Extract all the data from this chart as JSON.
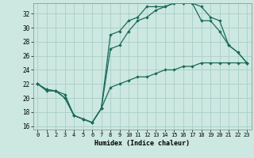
{
  "xlabel": "Humidex (Indice chaleur)",
  "bg_color": "#cce8e0",
  "grid_color": "#aacec6",
  "line_color": "#1a6b5a",
  "xlim": [
    -0.5,
    23.5
  ],
  "ylim": [
    15.5,
    33.5
  ],
  "xticks": [
    0,
    1,
    2,
    3,
    4,
    5,
    6,
    7,
    8,
    9,
    10,
    11,
    12,
    13,
    14,
    15,
    16,
    17,
    18,
    19,
    20,
    21,
    22,
    23
  ],
  "yticks": [
    16,
    18,
    20,
    22,
    24,
    26,
    28,
    30,
    32
  ],
  "line1_x": [
    0,
    1,
    2,
    3,
    4,
    5,
    6,
    7,
    8,
    9,
    10,
    11,
    12,
    13,
    14,
    15,
    16,
    17,
    18,
    19,
    20,
    21,
    22,
    23
  ],
  "line1_y": [
    22,
    21,
    21,
    20.5,
    17.5,
    17,
    16.5,
    18.5,
    21.5,
    22,
    22.5,
    23,
    23,
    23.5,
    24,
    24,
    24.5,
    24.5,
    25,
    25,
    25,
    25,
    25,
    25
  ],
  "line2_x": [
    0,
    1,
    2,
    3,
    4,
    5,
    6,
    7,
    8,
    9,
    10,
    11,
    12,
    13,
    14,
    15,
    16,
    17,
    18,
    19,
    20,
    21,
    22,
    23
  ],
  "line2_y": [
    22,
    21.2,
    21,
    20,
    17.5,
    17,
    16.5,
    18.5,
    27,
    27.5,
    29.5,
    31,
    31.5,
    32.5,
    33,
    33.5,
    33.5,
    33.5,
    33,
    31.5,
    31,
    27.5,
    26.5,
    25
  ],
  "line3_x": [
    0,
    1,
    2,
    3,
    4,
    5,
    6,
    7,
    8,
    9,
    10,
    11,
    12,
    13,
    14,
    15,
    16,
    17,
    18,
    19,
    20,
    21,
    22,
    23
  ],
  "line3_y": [
    22,
    21.2,
    21,
    20,
    17.5,
    17,
    16.5,
    18.5,
    29,
    29.5,
    31,
    31.5,
    33,
    33,
    33,
    33.5,
    33.5,
    33.5,
    31,
    31,
    29.5,
    27.5,
    26.5,
    25
  ],
  "marker_size": 2.2,
  "linewidth": 0.9
}
